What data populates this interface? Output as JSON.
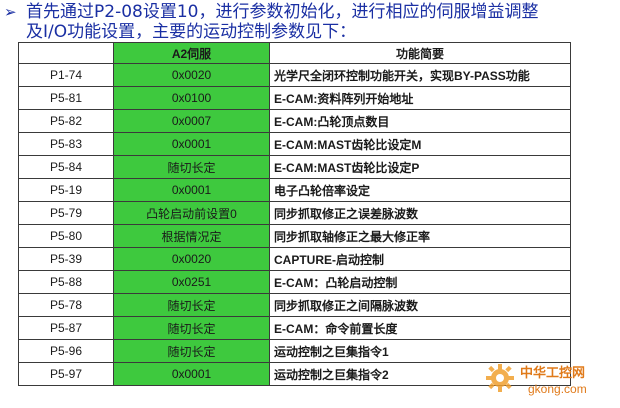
{
  "heading": {
    "bullet_icon": "arrow-bullet-icon",
    "line1": "首先通过P2-08设置10，进行参数初始化，进行相应的伺服增益调整",
    "line2": "及I/O功能设置，主要的运动控制参数见下："
  },
  "table": {
    "headers": [
      "",
      "A2伺服",
      "功能简要"
    ],
    "rows": [
      [
        "P1-74",
        "0x0020",
        "光学尺全闭环控制功能开关，实现BY-PASS功能"
      ],
      [
        "P5-81",
        "0x0100",
        "E-CAM:资料阵列开始地址"
      ],
      [
        "P5-82",
        "0x0007",
        "E-CAM:凸轮顶点数目"
      ],
      [
        "P5-83",
        "0x0001",
        "E-CAM:MAST齿轮比设定M"
      ],
      [
        "P5-84",
        "随切长定",
        "E-CAM:MAST齿轮比设定P"
      ],
      [
        "P5-19",
        "0x0001",
        "电子凸轮倍率设定"
      ],
      [
        "P5-79",
        "凸轮启动前设置0",
        "同步抓取修正之误差脉波数"
      ],
      [
        "P5-80",
        "根据情况定",
        "同步抓取轴修正之最大修正率"
      ],
      [
        "P5-39",
        "0x0020",
        "CAPTURE-启动控制"
      ],
      [
        "P5-88",
        "0x0251",
        "E-CAM：凸轮启动控制"
      ],
      [
        "P5-78",
        "随切长定",
        "同步抓取修正之间隔脉波数"
      ],
      [
        "P5-87",
        "随切长定",
        "E-CAM：命令前置长度"
      ],
      [
        "P5-96",
        "随切长定",
        "运动控制之巨集指令1"
      ],
      [
        "P5-97",
        "0x0001",
        "运动控制之巨集指令2"
      ]
    ]
  },
  "watermark": {
    "icon": "gear-logo-icon",
    "text": "中华工控网",
    "url": "gkong.com"
  },
  "colors": {
    "heading_text": "#1a2fa3",
    "green_column": "#3ec93e",
    "watermark": "#e07a1a"
  }
}
